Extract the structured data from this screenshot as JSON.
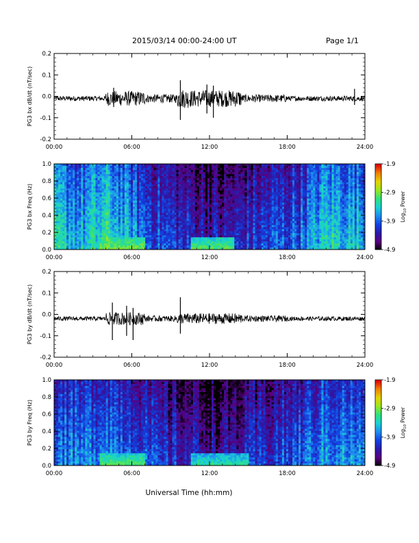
{
  "header": {
    "title": "2015/03/14  00:00-24:00 UT",
    "page_label": "Page 1/1"
  },
  "colors": {
    "trace": "#000000",
    "frame": "#000000",
    "colormap": [
      "#000000",
      "#5a0080",
      "#2a1aa8",
      "#1240e0",
      "#1e8cf0",
      "#19d2d2",
      "#30e080",
      "#9ae620",
      "#e6d200",
      "#f08000",
      "#e00000"
    ]
  },
  "chart_data": [
    {
      "type": "line",
      "name": "PG3 bx dB/dt",
      "ylabel": "PG3 bx dB/dt (nT/sec)",
      "ylim": [
        -0.2,
        0.2
      ],
      "yticks": [
        "0.2",
        "0.1",
        "0.0",
        "-0.1",
        "-0.2"
      ],
      "xlim_hours": [
        0,
        24
      ],
      "xticks": [
        "00:00",
        "06:00",
        "12:00",
        "18:00",
        "24:00"
      ],
      "baseline": -0.01,
      "activity": [
        {
          "start_h": 0,
          "end_h": 4,
          "amp": 0.012
        },
        {
          "start_h": 4,
          "end_h": 7,
          "amp": 0.035
        },
        {
          "start_h": 7,
          "end_h": 9.5,
          "amp": 0.02
        },
        {
          "start_h": 9.5,
          "end_h": 10.5,
          "amp": 0.045
        },
        {
          "start_h": 10.5,
          "end_h": 14.5,
          "amp": 0.04
        },
        {
          "start_h": 14.5,
          "end_h": 18,
          "amp": 0.018
        },
        {
          "start_h": 18,
          "end_h": 24,
          "amp": 0.012
        }
      ],
      "spikes": [
        {
          "t_h": 9.75,
          "min": -0.11,
          "max": 0.075
        },
        {
          "t_h": 11.8,
          "min": -0.08,
          "max": 0.055
        },
        {
          "t_h": 12.3,
          "min": -0.1,
          "max": 0.05
        },
        {
          "t_h": 4.6,
          "min": -0.05,
          "max": 0.04
        },
        {
          "t_h": 23.2,
          "min": -0.04,
          "max": 0.035
        }
      ]
    },
    {
      "type": "heatmap",
      "name": "PG3 bx Freq",
      "ylabel": "PG3 bx Freq (Hz)",
      "ylim": [
        0.0,
        1.0
      ],
      "yticks": [
        "1.0",
        "0.8",
        "0.6",
        "0.4",
        "0.2",
        "0.0"
      ],
      "xlim_hours": [
        0,
        24
      ],
      "xticks": [
        "00:00",
        "06:00",
        "12:00",
        "18:00",
        "24:00"
      ],
      "colorbar": {
        "label": "Log",
        "label_sub": "10",
        "label_rest": " Power",
        "ticks": [
          "-1.9",
          "-2.9",
          "-3.9",
          "-4.9"
        ],
        "range": [
          -4.9,
          -1.9
        ]
      },
      "base_level": [
        {
          "h": 0,
          "v": -3.3
        },
        {
          "h": 2,
          "v": -3.5
        },
        {
          "h": 4,
          "v": -3.2
        },
        {
          "h": 6,
          "v": -3.6
        },
        {
          "h": 8,
          "v": -3.9
        },
        {
          "h": 10,
          "v": -4.1
        },
        {
          "h": 13,
          "v": -4.3
        },
        {
          "h": 16,
          "v": -4.0
        },
        {
          "h": 19,
          "v": -3.8
        },
        {
          "h": 21,
          "v": -3.3
        },
        {
          "h": 24,
          "v": -3.5
        }
      ],
      "low_freq_enhancement": [
        {
          "start_h": 3.5,
          "end_h": 7,
          "level": -2.9
        },
        {
          "start_h": 10.5,
          "end_h": 14,
          "level": -3.0
        }
      ]
    },
    {
      "type": "line",
      "name": "PG3 by dB/dt",
      "ylabel": "PG3 by dB/dt (nT/sec)",
      "ylim": [
        -0.2,
        0.2
      ],
      "yticks": [
        "0.2",
        "0.1",
        "0.0",
        "-0.1",
        "-0.2"
      ],
      "xlim_hours": [
        0,
        24
      ],
      "xticks": [
        "00:00",
        "06:00",
        "12:00",
        "18:00",
        "24:00"
      ],
      "baseline": -0.02,
      "activity": [
        {
          "start_h": 0,
          "end_h": 4,
          "amp": 0.01
        },
        {
          "start_h": 4,
          "end_h": 7,
          "amp": 0.03
        },
        {
          "start_h": 7,
          "end_h": 9.5,
          "amp": 0.014
        },
        {
          "start_h": 9.5,
          "end_h": 10.5,
          "amp": 0.025
        },
        {
          "start_h": 10.5,
          "end_h": 14.5,
          "amp": 0.025
        },
        {
          "start_h": 14.5,
          "end_h": 18,
          "amp": 0.014
        },
        {
          "start_h": 18,
          "end_h": 24,
          "amp": 0.01
        }
      ],
      "spikes": [
        {
          "t_h": 4.5,
          "min": -0.12,
          "max": 0.055
        },
        {
          "t_h": 5.6,
          "min": -0.1,
          "max": 0.04
        },
        {
          "t_h": 6.1,
          "min": -0.12,
          "max": 0.03
        },
        {
          "t_h": 9.75,
          "min": -0.09,
          "max": 0.08
        }
      ]
    },
    {
      "type": "heatmap",
      "name": "PG3 by Freq",
      "ylabel": "PG3 by Freq (Hz)",
      "ylim": [
        0.0,
        1.0
      ],
      "yticks": [
        "1.0",
        "0.8",
        "0.6",
        "0.4",
        "0.2",
        "0.0"
      ],
      "xlim_hours": [
        0,
        24
      ],
      "xticks": [
        "00:00",
        "06:00",
        "12:00",
        "18:00",
        "24:00"
      ],
      "xlabel": "Universal Time (hh:mm)",
      "colorbar": {
        "label": "Log",
        "label_sub": "10",
        "label_rest": " Power",
        "ticks": [
          "-1.9",
          "-2.9",
          "-3.9",
          "-4.9"
        ],
        "range": [
          -4.9,
          -1.9
        ]
      },
      "base_level": [
        {
          "h": 0,
          "v": -3.6
        },
        {
          "h": 2,
          "v": -3.8
        },
        {
          "h": 4,
          "v": -3.6
        },
        {
          "h": 6,
          "v": -3.8
        },
        {
          "h": 8,
          "v": -4.1
        },
        {
          "h": 10,
          "v": -4.2
        },
        {
          "h": 13,
          "v": -4.4
        },
        {
          "h": 16,
          "v": -4.1
        },
        {
          "h": 19,
          "v": -3.9
        },
        {
          "h": 21,
          "v": -3.6
        },
        {
          "h": 24,
          "v": -3.7
        }
      ],
      "low_freq_enhancement": [
        {
          "start_h": 3.5,
          "end_h": 7,
          "level": -3.0
        },
        {
          "start_h": 10.5,
          "end_h": 15,
          "level": -3.2
        }
      ]
    }
  ]
}
